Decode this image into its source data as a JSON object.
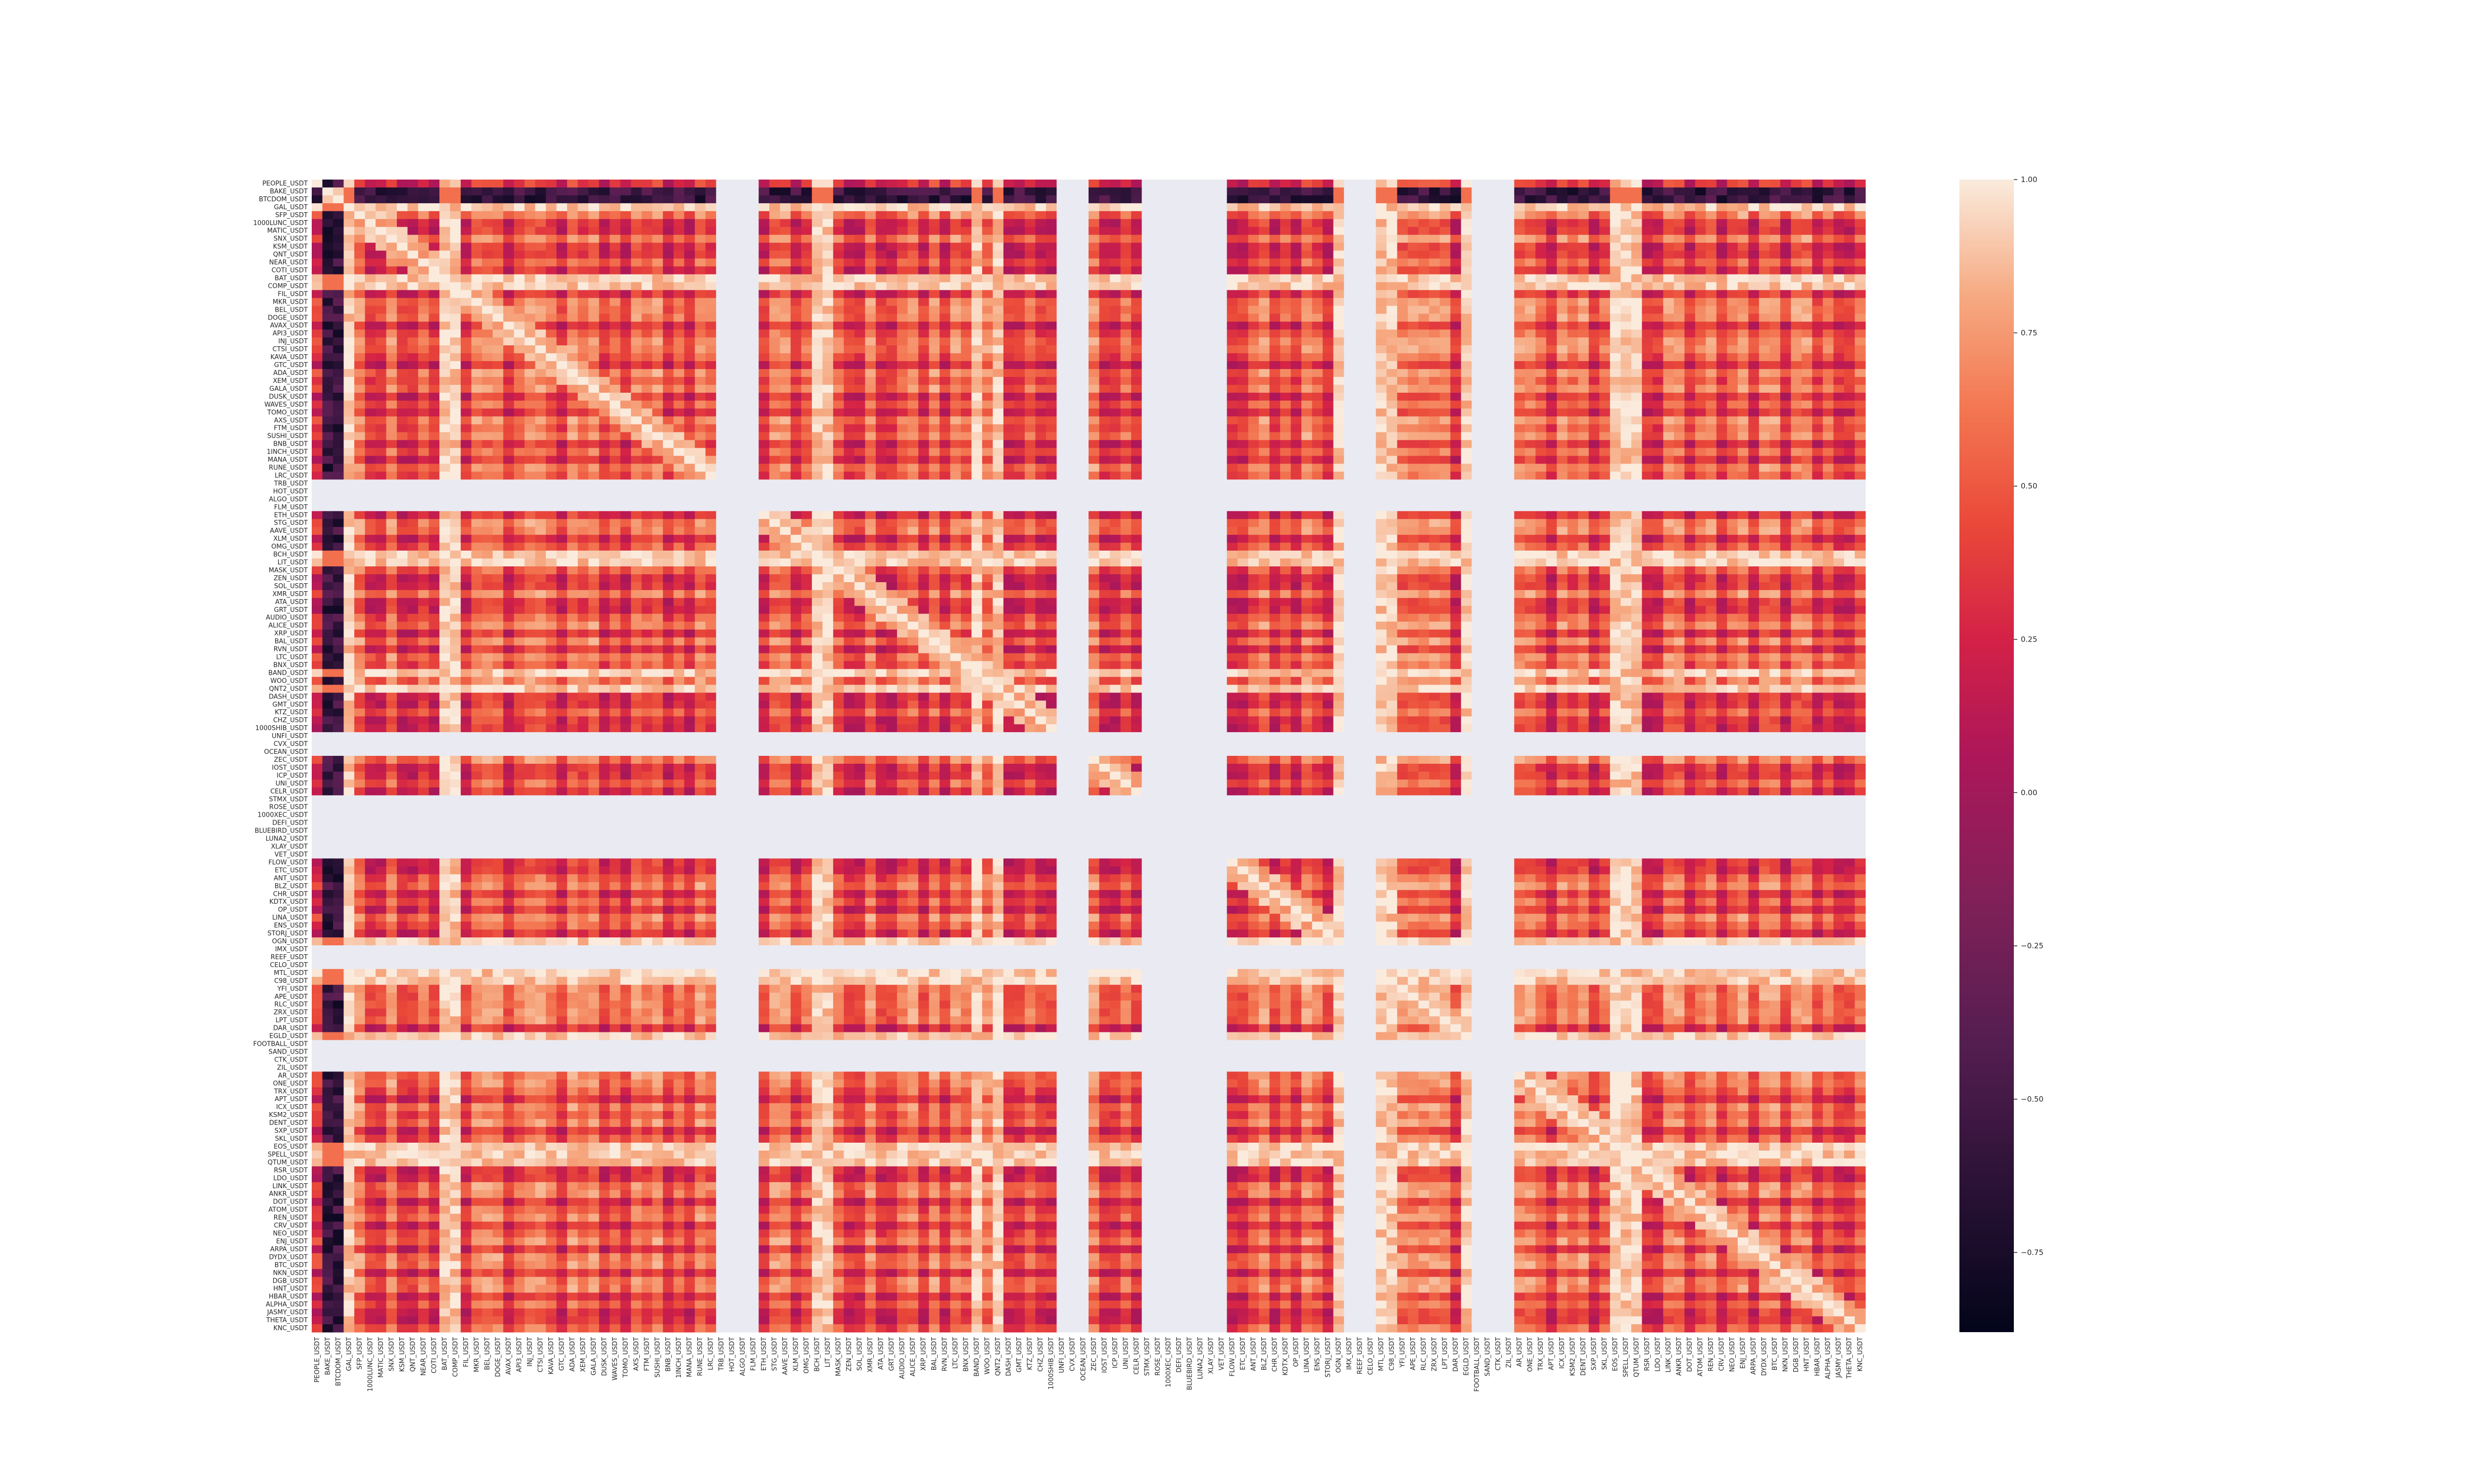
{
  "chart_data": {
    "type": "heatmap",
    "title": "",
    "xlabel": "",
    "ylabel": "",
    "labels": [
      "PEOPLE_USDT",
      "BAKE_USDT",
      "BTCDOM_USDT",
      "GAL_USDT",
      "SFP_USDT",
      "1000LUNC_USDT",
      "MATIC_USDT",
      "SNX_USDT",
      "KSM_USDT",
      "QNT_USDT",
      "NEAR_USDT",
      "COTI_USDT",
      "BAT_USDT",
      "COMP_USDT",
      "FIL_USDT",
      "MKR_USDT",
      "BEL_USDT",
      "DOGE_USDT",
      "AVAX_USDT",
      "API3_USDT",
      "INJ_USDT",
      "CTSI_USDT",
      "KAVA_USDT",
      "GTC_USDT",
      "ADA_USDT",
      "XEM_USDT",
      "GALA_USDT",
      "DUSK_USDT",
      "WAVES_USDT",
      "TOMO_USDT",
      "AXS_USDT",
      "FTM_USDT",
      "SUSHI_USDT",
      "BNB_USDT",
      "1INCH_USDT",
      "MANA_USDT",
      "RUNE_USDT",
      "LRC_USDT",
      "TRB_USDT",
      "HOT_USDT",
      "ALGO_USDT",
      "FLM_USDT",
      "ETH_USDT",
      "STG_USDT",
      "AAVE_USDT",
      "XLM_USDT",
      "OMG_USDT",
      "BCH_USDT",
      "LIT_USDT",
      "MASK_USDT",
      "ZEN_USDT",
      "SOL_USDT",
      "XMR_USDT",
      "ATA_USDT",
      "GRT_USDT",
      "AUDIO_USDT",
      "ALICE_USDT",
      "XRP_USDT",
      "BAL_USDT",
      "RVN_USDT",
      "LTC_USDT",
      "BNX_USDT",
      "BAND_USDT",
      "WOO_USDT",
      "QNT2_USDT",
      "DASH_USDT",
      "GMT_USDT",
      "KTZ_USDT",
      "CHZ_USDT",
      "1000SHIB_USDT",
      "UNFI_USDT",
      "CVX_USDT",
      "OCEAN_USDT",
      "ZEC_USDT",
      "IOST_USDT",
      "ICP_USDT",
      "UNI_USDT",
      "CELR_USDT",
      "STMX_USDT",
      "ROSE_USDT",
      "1000XEC_USDT",
      "DEFI_USDT",
      "BLUEBIRD_USDT",
      "LUNA2_USDT",
      "XLAY_USDT",
      "VET_USDT",
      "FLOW_USDT",
      "ETC_USDT",
      "ANT_USDT",
      "BLZ_USDT",
      "CHR_USDT",
      "KDTX_USDT",
      "OP_USDT",
      "LINA_USDT",
      "ENS_USDT",
      "STORJ_USDT",
      "OGN_USDT",
      "IMX_USDT",
      "REEF_USDT",
      "CELO_USDT",
      "MTL_USDT",
      "C98_USDT",
      "YFI_USDT",
      "APE_USDT",
      "RLC_USDT",
      "ZRX_USDT",
      "LPT_USDT",
      "DAR_USDT",
      "EGLD_USDT",
      "FOOTBALL_USDT",
      "SAND_USDT",
      "CTK_USDT",
      "ZIL_USDT",
      "AR_USDT",
      "ONE_USDT",
      "TRX_USDT",
      "APT_USDT",
      "ICX_USDT",
      "KSM2_USDT",
      "DENT_USDT",
      "SXP_USDT",
      "SKL_USDT",
      "EOS_USDT",
      "SPELL_USDT",
      "QTUM_USDT",
      "RSR_USDT",
      "LDO_USDT",
      "LINK_USDT",
      "ANKR_USDT",
      "DOT_USDT",
      "ATOM_USDT",
      "REN_USDT",
      "CRV_USDT",
      "NEO_USDT",
      "ENJ_USDT",
      "ARPA_USDT",
      "DYDX_USDT",
      "BTC_USDT",
      "NKN_USDT",
      "DGB_USDT",
      "HNT_USDT",
      "HBAR_USDT",
      "ALPHA_USDT",
      "JASMY_USDT",
      "THETA_USDT",
      "KNC_USDT"
    ],
    "nan_indices": [
      38,
      39,
      40,
      41,
      70,
      71,
      72,
      78,
      79,
      80,
      81,
      82,
      83,
      84,
      85,
      97,
      98,
      99,
      109,
      110,
      111,
      112
    ],
    "rows": [
      "cmmxdmdxdmnhmdmmxmddddxxddddddddxdddmmmdmdmdmdmdmdmmdmmdmdmdmdmmxmmdmmdmmmmdmdmdmmmmmdmdmdmdmdmdmdmdmdmdmdmdmdmdmdmdmdmdmdmdmdmdmdmdmdmdmdmdmdmd",
      "hphhpmhhpmmmhpmmpmmmhhmmhmmmhmmhmhmmmhhhhpmmhmmhmmmhhmmhmhmmhmmmmhmhmmmhhhmhhmmhhhhhmhmhmmmhhmmmhhhmhmmmmmhhmmhmmmhhmmmhmmhmmmhhmmmhmmmhmmm",
      "mmmpmmhmmpmmmmpmmpmmmmmmmmmmmmmmmmmmmmmmmmmmmmmmmmmmmmmmmmmmmmmmmmmmmmmmmmmmmmmmmmmmmmmmmmmmmmmmmmmmmmmmmmmmmmmmmmmmmmmmmmmmmmmmmmmmmmmmmmmm"
    ],
    "colorbar": {
      "min": -0.88,
      "max": 1.0,
      "ticks": [
        1.0,
        0.75,
        0.5,
        0.25,
        0.0,
        -0.25,
        -0.5,
        -0.75
      ],
      "tick_labels": [
        "1.00",
        "0.75",
        "0.50",
        "0.25",
        "0.00",
        "−0.25",
        "−0.50",
        "−0.75"
      ]
    },
    "colors": {
      "nan": "#eaeaf2",
      "colormap": "rocket"
    },
    "legend_placement": "right"
  }
}
